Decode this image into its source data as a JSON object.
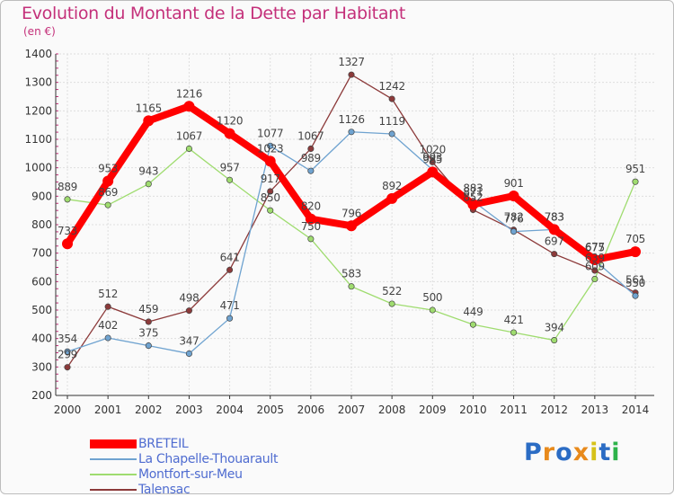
{
  "title": "Evolution du Montant de la Dette par Habitant",
  "unit": "(en €)",
  "logo": {
    "text": "Proxiti",
    "letters": [
      "P",
      "r",
      "o",
      "x",
      "i",
      "t",
      "i"
    ],
    "colors": [
      "#2b6cc4",
      "#e88a1c",
      "#2b6cc4",
      "#e88a1c",
      "#d6c21a",
      "#2b6cc4",
      "#2db34a"
    ]
  },
  "chart_data": {
    "type": "line",
    "title": "Evolution du Montant de la Dette par Habitant",
    "ylabel": "(en €)",
    "xlabel": "",
    "x": [
      "2000",
      "2001",
      "2002",
      "2003",
      "2004",
      "2005",
      "2006",
      "2007",
      "2008",
      "2009",
      "2010",
      "2011",
      "2012",
      "2013",
      "2014"
    ],
    "ylim": [
      200,
      1400
    ],
    "yticks": [
      "200",
      "300",
      "400",
      "500",
      "600",
      "700",
      "800",
      "900",
      "1000",
      "1100",
      "1200",
      "1300",
      "1400"
    ],
    "grid": true,
    "legend_position": "bottom",
    "series": [
      {
        "name": "BRETEIL",
        "color": "#ff0000",
        "values": [
          733,
          953,
          1165,
          1216,
          1120,
          1023,
          820,
          796,
          892,
          985,
          871,
          901,
          783,
          677,
          705
        ],
        "labels": [
          "733",
          "953",
          "1165",
          "1216",
          "1120",
          "1023",
          "820",
          "796",
          "892",
          "985",
          "871",
          "901",
          "783",
          "677",
          "705"
        ]
      },
      {
        "name": "La Chapelle-Thouarault",
        "color": "#6fa3d0",
        "values": [
          354,
          402,
          375,
          347,
          471,
          1077,
          989,
          1126,
          1119,
          993,
          883,
          776,
          783,
          675,
          550
        ],
        "labels": [
          "354",
          "402",
          "375",
          "347",
          "471",
          "1077",
          "989",
          "1126",
          "1119",
          "993",
          "883",
          "776",
          "783",
          "675",
          "550"
        ]
      },
      {
        "name": "Montfort-sur-Meu",
        "color": "#9fdc6f",
        "values": [
          889,
          869,
          943,
          1067,
          957,
          850,
          750,
          583,
          522,
          500,
          449,
          421,
          394,
          609,
          951
        ],
        "labels": [
          "889",
          "869",
          "943",
          "1067",
          "957",
          "850",
          "750",
          "583",
          "522",
          "500",
          "449",
          "421",
          "394",
          "609",
          "951"
        ]
      },
      {
        "name": "Talensac",
        "color": "#8c3a3a",
        "values": [
          299,
          512,
          459,
          498,
          641,
          917,
          1067,
          1327,
          1242,
          1020,
          852,
          782,
          697,
          639,
          561
        ],
        "labels": [
          "299",
          "512",
          "459",
          "498",
          "641",
          "917",
          "1067",
          "1327",
          "1242",
          "1020",
          "852",
          "782",
          "697",
          "639",
          "561"
        ]
      }
    ]
  }
}
